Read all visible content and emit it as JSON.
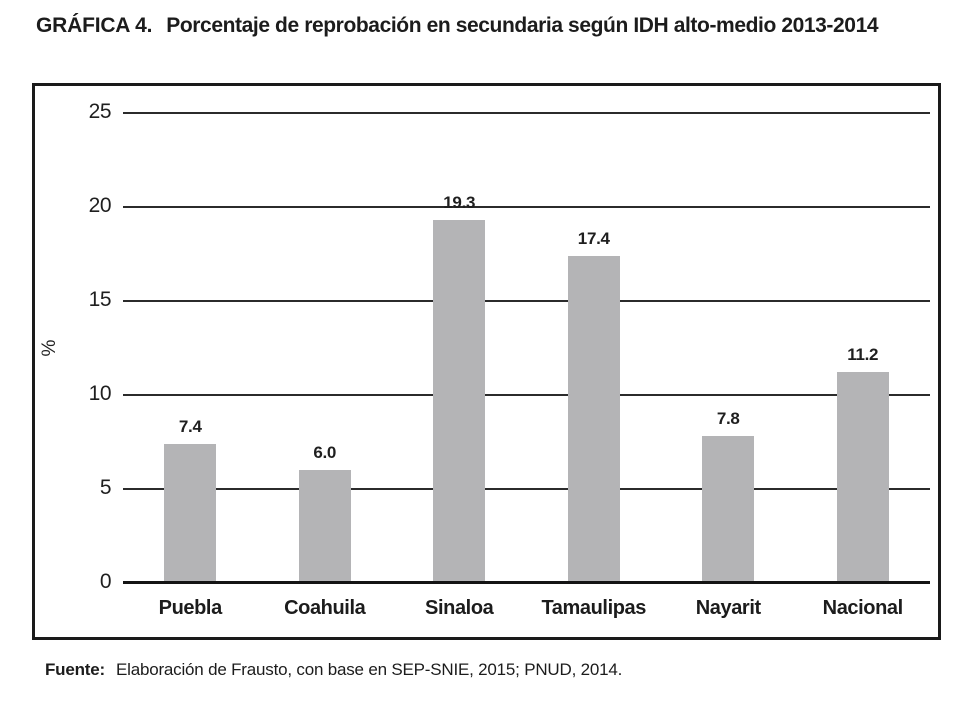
{
  "title": {
    "label": "GRÁFICA 4.",
    "text": "Porcentaje de reprobación en secundaria según IDH alto-medio 2013-2014"
  },
  "chart_data": {
    "type": "bar",
    "categories": [
      "Puebla",
      "Coahuila",
      "Sinaloa",
      "Tamaulipas",
      "Nayarit",
      "Nacional"
    ],
    "values": [
      7.4,
      6.0,
      19.3,
      17.4,
      7.8,
      11.2
    ],
    "value_labels": [
      "7.4",
      "6.0",
      "19.3",
      "17.4",
      "7.8",
      "11.2"
    ],
    "title": "Porcentaje de reprobación en secundaria según IDH alto-medio 2013-2014",
    "xlabel": "",
    "ylabel": "%",
    "ylim": [
      0,
      25
    ],
    "yticks": [
      0,
      5,
      10,
      15,
      20,
      25
    ],
    "grid": true,
    "legend": "none",
    "bar_color": "#b4b4b6",
    "gridline_color": "#2b2b2b",
    "frame_color": "#1a1a1a"
  },
  "footer": {
    "label": "Fuente:",
    "text": "Elaboración de Frausto, con base en SEP-SNIE, 2015; PNUD, 2014."
  }
}
